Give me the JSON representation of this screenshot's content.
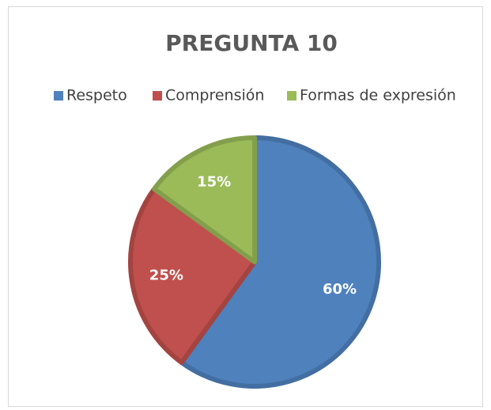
{
  "chart_data": {
    "type": "pie",
    "title": "PREGUNTA 10",
    "categories": [
      "Respeto",
      "Comprensión",
      "Formas de expresión"
    ],
    "values": [
      60,
      25,
      15
    ],
    "value_labels": [
      "60%",
      "25%",
      "15%"
    ],
    "colors": [
      "#4f81bd",
      "#c0504d",
      "#9bbb59"
    ],
    "legend": "top"
  }
}
